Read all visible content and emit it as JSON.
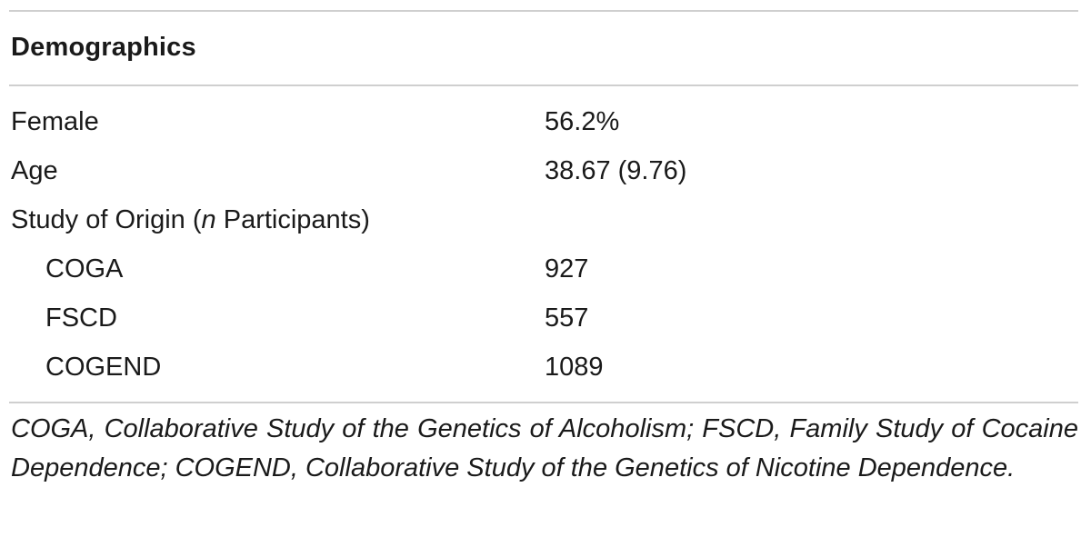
{
  "table": {
    "header": "Demographics",
    "rows": [
      {
        "label": "Female",
        "value": "56.2%"
      },
      {
        "label": "Age",
        "value": "38.67 (9.76)"
      },
      {
        "label_before": "Study of Origin (",
        "label_italic": "n",
        "label_after": " Participants)",
        "value": ""
      },
      {
        "label": "COGA",
        "value": "927"
      },
      {
        "label": "FSCD",
        "value": "557"
      },
      {
        "label": "COGEND",
        "value": "1089"
      }
    ],
    "footnote": "COGA, Collaborative Study of the Genetics of Alcoholism; FSCD, Family Study of Cocaine Dependence; COGEND, Collaborative Study of the Genetics of Nicotine Dependence."
  }
}
